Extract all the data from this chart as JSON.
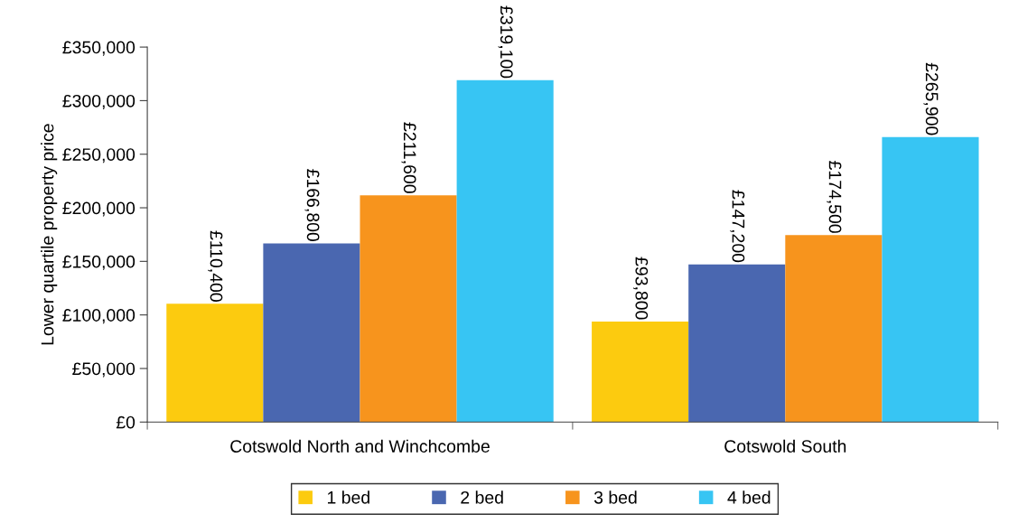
{
  "chart_data": {
    "type": "bar",
    "ylabel": "Lower quartile property price",
    "categories": [
      "Cotswold North and Winchcombe",
      "Cotswold South"
    ],
    "series": [
      {
        "name": "1 bed",
        "color": "#fccb0f",
        "values": [
          110400,
          93800
        ],
        "value_labels": [
          "£110,400",
          "£93,800"
        ]
      },
      {
        "name": "2 bed",
        "color": "#4a67b0",
        "values": [
          166800,
          147200
        ],
        "value_labels": [
          "£166,800",
          "£147,200"
        ]
      },
      {
        "name": "3 bed",
        "color": "#f7941d",
        "values": [
          211600,
          174500
        ],
        "value_labels": [
          "£211,600",
          "£174,500"
        ]
      },
      {
        "name": "4 bed",
        "color": "#37c5f3",
        "values": [
          319100,
          265900
        ],
        "value_labels": [
          "£319,100",
          "£265,900"
        ]
      }
    ],
    "ylim": [
      0,
      350000
    ],
    "yticks": [
      {
        "value": 0,
        "label": "£0"
      },
      {
        "value": 50000,
        "label": "£50,000"
      },
      {
        "value": 100000,
        "label": "£100,000"
      },
      {
        "value": 150000,
        "label": "£150,000"
      },
      {
        "value": 200000,
        "label": "£200,000"
      },
      {
        "value": 250000,
        "label": "£250,000"
      },
      {
        "value": 300000,
        "label": "£300,000"
      },
      {
        "value": 350000,
        "label": "£350,000"
      }
    ],
    "legend": "bottom",
    "grid": false
  }
}
